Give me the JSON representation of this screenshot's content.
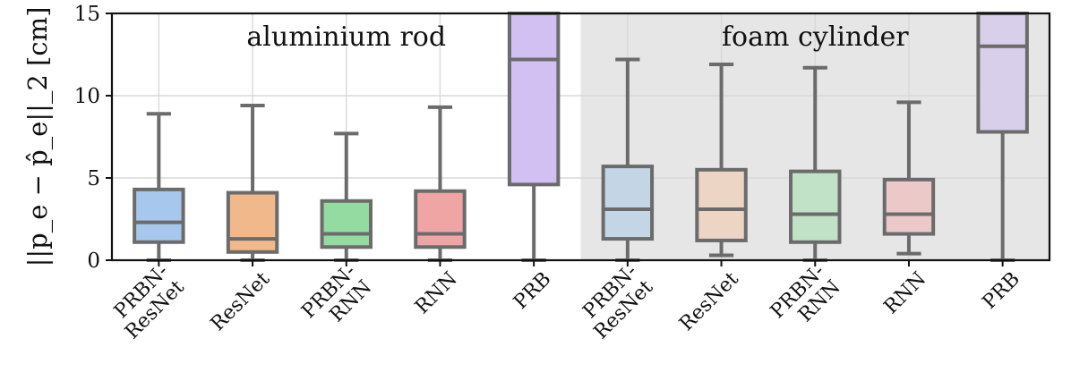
{
  "chart_data": {
    "type": "boxplot",
    "ylabel": "||p_e − p̂_e||_2 [cm]",
    "ylim": [
      0,
      15
    ],
    "yticks": [
      0,
      5,
      10,
      15
    ],
    "grid": true,
    "groups": [
      {
        "label": "aluminium rod",
        "background": "#ffffff",
        "boxes": [
          {
            "category": [
              "PRBN-",
              "ResNet"
            ],
            "color": "#a7c8ec",
            "whislo": 0,
            "q1": 1.1,
            "median": 2.3,
            "q3": 4.3,
            "whishi": 8.9
          },
          {
            "category": [
              "ResNet"
            ],
            "color": "#f1b98b",
            "whislo": 0,
            "q1": 0.5,
            "median": 1.3,
            "q3": 4.1,
            "whishi": 9.4
          },
          {
            "category": [
              "PRBN-",
              "RNN"
            ],
            "color": "#93dba0",
            "whislo": 0,
            "q1": 0.8,
            "median": 1.6,
            "q3": 3.6,
            "whishi": 7.7
          },
          {
            "category": [
              "RNN"
            ],
            "color": "#f0a5a5",
            "whislo": 0,
            "q1": 0.8,
            "median": 1.6,
            "q3": 4.2,
            "whishi": 9.3
          },
          {
            "category": [
              "PRB"
            ],
            "color": "#d2c0f3",
            "whislo": 0,
            "q1": 4.6,
            "median": 12.2,
            "q3": 15.0,
            "whishi": 15.0
          }
        ]
      },
      {
        "label": "foam cylinder",
        "background": "#e6e6e6",
        "boxes": [
          {
            "category": [
              "PRBN-",
              "ResNet"
            ],
            "color": "#c4d5e5",
            "whislo": 0,
            "q1": 1.3,
            "median": 3.1,
            "q3": 5.7,
            "whishi": 12.2
          },
          {
            "category": [
              "ResNet"
            ],
            "color": "#ecd5c4",
            "whislo": 0.3,
            "q1": 1.2,
            "median": 3.1,
            "q3": 5.5,
            "whishi": 11.9
          },
          {
            "category": [
              "PRBN-",
              "RNN"
            ],
            "color": "#c2e2c8",
            "whislo": 0,
            "q1": 1.1,
            "median": 2.8,
            "q3": 5.4,
            "whishi": 11.7
          },
          {
            "category": [
              "RNN"
            ],
            "color": "#ecc9c9",
            "whislo": 0.4,
            "q1": 1.6,
            "median": 2.8,
            "q3": 4.9,
            "whishi": 9.6
          },
          {
            "category": [
              "PRB"
            ],
            "color": "#d8d0ea",
            "whislo": 0,
            "q1": 7.8,
            "median": 13.0,
            "q3": 15.0,
            "whishi": 15.0
          }
        ]
      }
    ],
    "line_color": "#6b6b6b",
    "grid_color": "#d8d8d8"
  }
}
